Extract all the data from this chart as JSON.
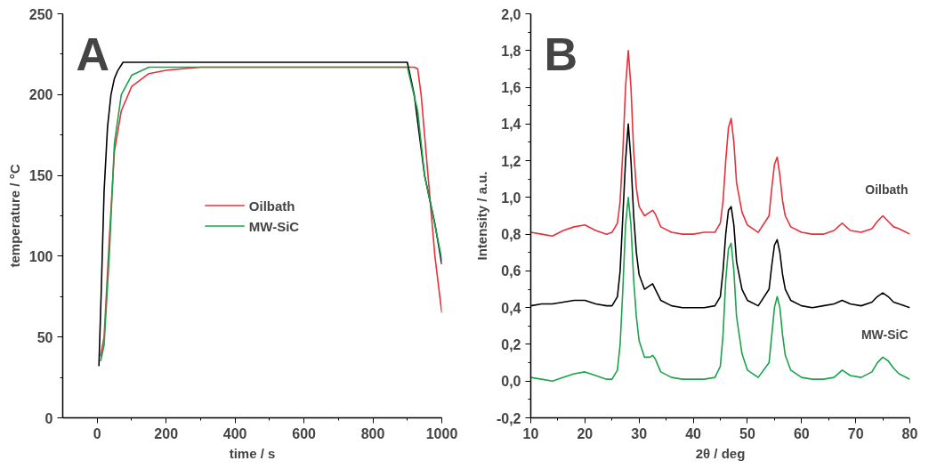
{
  "chart_data": [
    {
      "type": "line",
      "title": "A",
      "xlabel": "time / s",
      "ylabel": "temperature / °C",
      "xlim": [
        -100,
        1000
      ],
      "xticks": [
        0,
        200,
        400,
        600,
        800,
        1000
      ],
      "ylim": [
        0,
        250
      ],
      "yticks": [
        0,
        50,
        100,
        150,
        200,
        250
      ],
      "grid": false,
      "legend": "center",
      "series": [
        {
          "name": "Oilbath",
          "color": "#e8303a",
          "x": [
            10,
            20,
            35,
            50,
            70,
            100,
            150,
            200,
            300,
            500,
            700,
            920,
            930,
            940,
            960,
            980,
            1000
          ],
          "values": [
            38,
            50,
            110,
            165,
            190,
            205,
            213,
            215,
            217,
            217,
            217,
            217,
            216,
            200,
            150,
            100,
            65
          ]
        },
        {
          "color": "#000000",
          "x": [
            5,
            12,
            20,
            30,
            40,
            50,
            60,
            75,
            200,
            400,
            600,
            800,
            900,
            920,
            950,
            980,
            1000
          ],
          "values": [
            32,
            80,
            140,
            180,
            200,
            210,
            215,
            220,
            220,
            220,
            220,
            220,
            220,
            200,
            150,
            120,
            95
          ]
        },
        {
          "name": "MW-SiC",
          "color": "#1aa34a",
          "x": [
            10,
            20,
            35,
            50,
            70,
            100,
            150,
            300,
            500,
            700,
            900,
            930,
            950,
            970,
            1000
          ],
          "values": [
            35,
            45,
            100,
            170,
            200,
            212,
            217,
            217,
            217,
            217,
            217,
            190,
            150,
            130,
            98
          ]
        }
      ]
    },
    {
      "type": "line",
      "title": "B",
      "xlabel": "2θ / deg",
      "ylabel": "Intensity / a.u.",
      "xlim": [
        10,
        80
      ],
      "xticks": [
        10,
        20,
        30,
        40,
        50,
        60,
        70,
        80
      ],
      "ylim": [
        -0.2,
        2.0
      ],
      "yticks": [
        {
          "value": -0.2,
          "label": "-0,2"
        },
        {
          "value": 0.0,
          "label": "0,0"
        },
        {
          "value": 0.2,
          "label": "0,2"
        },
        {
          "value": 0.4,
          "label": "0,4"
        },
        {
          "value": 0.6,
          "label": "0,6"
        },
        {
          "value": 0.8,
          "label": "0,8"
        },
        {
          "value": 1.0,
          "label": "1,0"
        },
        {
          "value": 1.2,
          "label": "1,2"
        },
        {
          "value": 1.4,
          "label": "1,4"
        },
        {
          "value": 1.6,
          "label": "1,6"
        },
        {
          "value": 1.8,
          "label": "1,8"
        },
        {
          "value": 2.0,
          "label": "2,0"
        }
      ],
      "grid": false,
      "legend": false,
      "x": [
        10,
        12,
        14,
        16,
        18,
        20,
        22,
        24,
        25,
        26,
        26.5,
        27,
        27.5,
        28,
        28.5,
        29,
        29.5,
        30,
        31,
        32,
        32.5,
        33,
        34,
        36,
        38,
        40,
        42,
        44,
        45,
        45.5,
        46,
        46.5,
        47,
        47.5,
        48,
        49,
        50,
        52,
        54,
        54.5,
        55,
        55.5,
        56,
        56.5,
        57,
        58,
        60,
        62,
        64,
        66,
        67.5,
        69,
        71,
        73,
        74,
        75,
        76,
        77,
        78,
        80
      ],
      "series": [
        {
          "name": "Oilbath",
          "color": "#e8303a",
          "values": [
            0.81,
            0.8,
            0.79,
            0.82,
            0.84,
            0.85,
            0.82,
            0.8,
            0.81,
            0.86,
            0.98,
            1.25,
            1.6,
            1.8,
            1.6,
            1.25,
            1.05,
            0.95,
            0.9,
            0.92,
            0.93,
            0.91,
            0.84,
            0.81,
            0.8,
            0.8,
            0.81,
            0.81,
            0.86,
            0.98,
            1.2,
            1.38,
            1.43,
            1.3,
            1.08,
            0.92,
            0.85,
            0.81,
            0.9,
            1.05,
            1.18,
            1.22,
            1.12,
            0.98,
            0.9,
            0.84,
            0.81,
            0.8,
            0.8,
            0.82,
            0.86,
            0.82,
            0.81,
            0.83,
            0.87,
            0.9,
            0.87,
            0.84,
            0.83,
            0.8
          ]
        },
        {
          "color": "#000000",
          "values": [
            0.41,
            0.42,
            0.42,
            0.43,
            0.44,
            0.44,
            0.42,
            0.41,
            0.41,
            0.46,
            0.6,
            0.9,
            1.2,
            1.4,
            1.2,
            0.9,
            0.7,
            0.58,
            0.5,
            0.52,
            0.53,
            0.5,
            0.44,
            0.41,
            0.4,
            0.4,
            0.4,
            0.41,
            0.46,
            0.6,
            0.8,
            0.93,
            0.95,
            0.85,
            0.65,
            0.5,
            0.44,
            0.41,
            0.5,
            0.63,
            0.74,
            0.77,
            0.7,
            0.58,
            0.5,
            0.44,
            0.41,
            0.4,
            0.41,
            0.42,
            0.44,
            0.42,
            0.41,
            0.43,
            0.46,
            0.48,
            0.46,
            0.43,
            0.42,
            0.4
          ]
        },
        {
          "name": "MW-SiC",
          "color": "#1aa34a",
          "values": [
            0.02,
            0.01,
            0.0,
            0.02,
            0.04,
            0.05,
            0.03,
            0.01,
            0.01,
            0.06,
            0.2,
            0.5,
            0.85,
            1.0,
            0.85,
            0.55,
            0.35,
            0.22,
            0.13,
            0.13,
            0.14,
            0.12,
            0.05,
            0.02,
            0.01,
            0.01,
            0.01,
            0.02,
            0.08,
            0.25,
            0.55,
            0.72,
            0.75,
            0.6,
            0.35,
            0.15,
            0.06,
            0.02,
            0.1,
            0.25,
            0.4,
            0.46,
            0.4,
            0.25,
            0.14,
            0.06,
            0.02,
            0.01,
            0.01,
            0.02,
            0.06,
            0.03,
            0.02,
            0.05,
            0.1,
            0.13,
            0.11,
            0.07,
            0.04,
            0.01
          ]
        }
      ]
    }
  ]
}
